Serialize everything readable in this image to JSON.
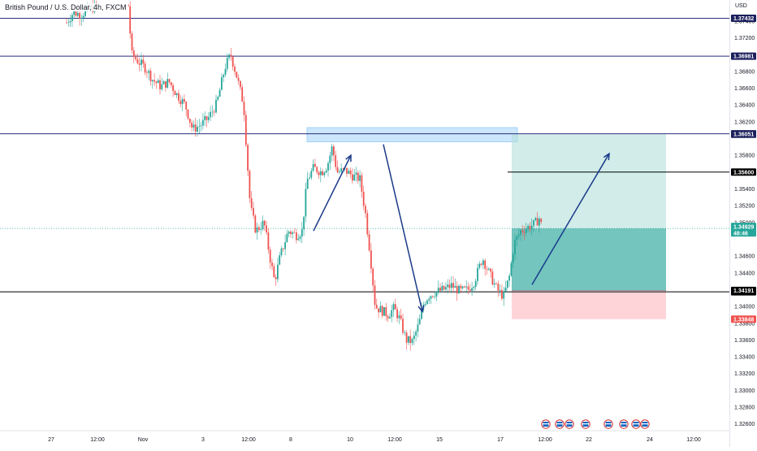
{
  "title": "British Pound / U.S. Dollar, 4h, FXCM",
  "currency": "USD",
  "colors": {
    "up": "#26a69a",
    "down": "#ef5350",
    "level_line": "#2a2e7a",
    "black_line": "#000000",
    "arrow": "#1a3a8a",
    "supply_zone": "#bbdefb",
    "target_zone": "#b2dfdb",
    "profit_zone": "#26a69a",
    "stop_zone": "#ffcdd2",
    "tag_navy": "#1a1f5c",
    "tag_black": "#000000",
    "tag_teal": "#26a69a",
    "tag_red": "#ef5350"
  },
  "chart_data": {
    "type": "candlestick",
    "title": "British Pound / U.S. Dollar, 4h, FXCM",
    "ylim": [
      1.3252,
      1.3765
    ],
    "y_ticks": [
      "1.37400",
      "1.37200",
      "1.36800",
      "1.36600",
      "1.36400",
      "1.36200",
      "1.35800",
      "1.35400",
      "1.35200",
      "1.35000",
      "1.34600",
      "1.34400",
      "1.34000",
      "1.33800",
      "1.33600",
      "1.33400",
      "1.33200",
      "1.33000",
      "1.32800",
      "1.32600"
    ],
    "x_ticks": [
      {
        "label": "27",
        "t": 63
      },
      {
        "label": "12:00",
        "t": 120
      },
      {
        "label": "Nov",
        "t": 176
      },
      {
        "label": "3",
        "t": 250
      },
      {
        "label": "12:00",
        "t": 306
      },
      {
        "label": "8",
        "t": 358
      },
      {
        "label": "10",
        "t": 431
      },
      {
        "label": "12:00",
        "t": 486
      },
      {
        "label": "15",
        "t": 541
      },
      {
        "label": "17",
        "t": 616
      },
      {
        "label": "12:00",
        "t": 671
      },
      {
        "label": "22",
        "t": 725
      },
      {
        "label": "24",
        "t": 800
      },
      {
        "label": "12:00",
        "t": 854
      }
    ],
    "price_path": [
      [
        82,
        1.3738
      ],
      [
        90,
        1.375
      ],
      [
        100,
        1.3748
      ],
      [
        112,
        1.3755
      ],
      [
        122,
        1.3758
      ],
      [
        158,
        1.3758
      ],
      [
        162,
        1.37
      ],
      [
        170,
        1.3692
      ],
      [
        180,
        1.3683
      ],
      [
        188,
        1.367
      ],
      [
        198,
        1.3662
      ],
      [
        208,
        1.3668
      ],
      [
        218,
        1.3652
      ],
      [
        228,
        1.364
      ],
      [
        237,
        1.3611
      ],
      [
        247,
        1.3616
      ],
      [
        257,
        1.3625
      ],
      [
        267,
        1.3642
      ],
      [
        277,
        1.3685
      ],
      [
        284,
        1.37
      ],
      [
        292,
        1.3672
      ],
      [
        300,
        1.364
      ],
      [
        304,
        1.358
      ],
      [
        308,
        1.352
      ],
      [
        315,
        1.349
      ],
      [
        325,
        1.35
      ],
      [
        333,
        1.3455
      ],
      [
        338,
        1.343
      ],
      [
        345,
        1.346
      ],
      [
        355,
        1.349
      ],
      [
        365,
        1.3485
      ],
      [
        372,
        1.349
      ],
      [
        378,
        1.355
      ],
      [
        386,
        1.3565
      ],
      [
        396,
        1.356
      ],
      [
        403,
        1.3568
      ],
      [
        409,
        1.359
      ],
      [
        415,
        1.356
      ],
      [
        425,
        1.3562
      ],
      [
        435,
        1.3555
      ],
      [
        443,
        1.3552
      ],
      [
        450,
        1.351
      ],
      [
        456,
        1.346
      ],
      [
        462,
        1.34
      ],
      [
        470,
        1.3395
      ],
      [
        478,
        1.339
      ],
      [
        485,
        1.3398
      ],
      [
        492,
        1.3385
      ],
      [
        500,
        1.336
      ],
      [
        508,
        1.3358
      ],
      [
        516,
        1.338
      ],
      [
        522,
        1.3405
      ],
      [
        528,
        1.3413
      ],
      [
        536,
        1.3417
      ],
      [
        546,
        1.342
      ],
      [
        556,
        1.3425
      ],
      [
        566,
        1.3418
      ],
      [
        576,
        1.342
      ],
      [
        584,
        1.343
      ],
      [
        594,
        1.3458
      ],
      [
        602,
        1.344
      ],
      [
        612,
        1.342
      ],
      [
        620,
        1.3412
      ],
      [
        627,
        1.3435
      ],
      [
        633,
        1.3475
      ],
      [
        641,
        1.349
      ],
      [
        651,
        1.3495
      ],
      [
        658,
        1.3498
      ],
      [
        664,
        1.3505
      ],
      [
        667,
        1.3495
      ]
    ],
    "levels": [
      {
        "name": "level-1-37432",
        "price": 1.37432,
        "label": "1.37432",
        "color": "level_line",
        "tag": "tag_navy"
      },
      {
        "name": "level-1-36981",
        "price": 1.36981,
        "label": "1.36981",
        "color": "level_line",
        "tag": "tag_navy"
      },
      {
        "name": "level-1-36057",
        "price": 1.36057,
        "label": "1.36057",
        "color": "level_line",
        "tag": "tag_navy"
      },
      {
        "name": "level-1-35600",
        "price": 1.356,
        "label": "1.35600",
        "color": "black_line",
        "tag": "tag_black",
        "x_start": 625
      },
      {
        "name": "level-1-34174",
        "price": 1.34174,
        "label": "1.34174",
        "color": "black_line",
        "tag": "tag_black"
      }
    ],
    "price_tags": [
      {
        "name": "target-tag",
        "price": 1.36051,
        "label": "1.36051",
        "tag": "tag_navy"
      },
      {
        "name": "entry-tag",
        "price": 1.34191,
        "label": "1.34191",
        "tag": "tag_black"
      },
      {
        "name": "stop-tag",
        "price": 1.33848,
        "label": "1.33848",
        "tag": "tag_red"
      }
    ],
    "current_price": {
      "label": "1.34929",
      "countdown": "48:46",
      "price": 1.34929
    },
    "position": {
      "type": "long",
      "t_start": 630,
      "t_end": 820,
      "entry": 1.34191,
      "target": 1.36051,
      "stop": 1.33848,
      "current": 1.34929
    },
    "supply_zone": {
      "t_start": 378,
      "t_end": 637,
      "top": 1.3613,
      "bottom": 1.3596
    },
    "arrows": [
      {
        "from": [
          386,
          1.349
        ],
        "to": [
          432,
          1.358
        ]
      },
      {
        "from": [
          472,
          1.3593
        ],
        "to": [
          520,
          1.3394
        ]
      },
      {
        "from": [
          655,
          1.3426
        ],
        "to": [
          750,
          1.3582
        ]
      }
    ]
  }
}
